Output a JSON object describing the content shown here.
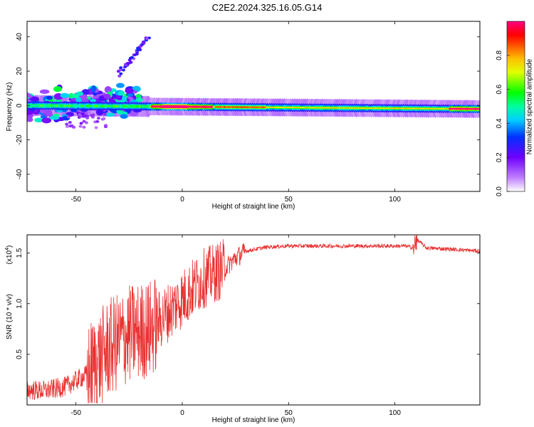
{
  "title": "C2E2.2024.325.16.05.G14",
  "colors": {
    "snr_line": "#e83030",
    "background": "#ffffff",
    "axis": "#000000"
  },
  "chart_data": [
    {
      "type": "heatmap",
      "xlabel": "Height of straight line (km)",
      "ylabel": "Frequency (Hz)",
      "xlim": [
        -73,
        140
      ],
      "ylim": [
        -50,
        49
      ],
      "xticks": [
        -50,
        0,
        50,
        100
      ],
      "yticks": [
        -40,
        -20,
        0,
        20,
        40
      ],
      "grid": false,
      "colorbar": {
        "label": "Normalized spectral amplitude",
        "range": [
          0,
          1
        ],
        "ticks": [
          0.0,
          0.2,
          0.4,
          0.6,
          0.8
        ],
        "tick_labels": [
          "0.0",
          "0.2",
          "0.4",
          "0.6",
          "0.8"
        ],
        "colormap": "rainbow (white → violet → blue → cyan → green → yellow → orange → red → magenta)"
      },
      "features": {
        "main_band": {
          "x_range": [
            -73,
            140
          ],
          "center_frequency": [
            0,
            -2
          ],
          "half_width": 2.5,
          "peak_amplitude": 1.0
        },
        "scatter_cluster": {
          "x_range": [
            -73,
            -20
          ],
          "frequency_range": [
            -12,
            12
          ]
        },
        "rising_branch": {
          "points": [
            [
              -30,
              18
            ],
            [
              -22,
              30
            ],
            [
              -16,
              40
            ]
          ]
        }
      }
    },
    {
      "type": "line",
      "xlabel": "Height of straight line (km)",
      "ylabel": "SNR (10 * v/v)",
      "y_multiplier": "(x10",
      "y_multiplier_exp": "4",
      "y_multiplier_close": ")",
      "xlim": [
        -73,
        140
      ],
      "ylim": [
        0,
        1.68
      ],
      "xticks": [
        -50,
        0,
        50,
        100
      ],
      "yticks": [
        0.5,
        1.0,
        1.5
      ],
      "ytick_labels": [
        "0.5",
        "1.0",
        "1.5"
      ],
      "grid": false,
      "series": [
        {
          "x": [
            -73,
            -65,
            -55,
            -45,
            -35,
            -25,
            -15,
            -10,
            -5,
            0,
            5,
            10,
            15,
            20,
            25,
            30,
            40,
            50,
            60,
            70,
            80,
            90,
            100,
            105,
            109,
            110,
            115,
            125,
            140
          ],
          "y": [
            0.15,
            0.14,
            0.18,
            0.3,
            0.55,
            0.7,
            0.75,
            0.85,
            0.95,
            1.05,
            1.15,
            1.25,
            1.3,
            1.35,
            1.45,
            1.52,
            1.56,
            1.57,
            1.57,
            1.57,
            1.57,
            1.57,
            1.57,
            1.57,
            1.55,
            1.64,
            1.55,
            1.54,
            1.52
          ]
        }
      ]
    }
  ]
}
